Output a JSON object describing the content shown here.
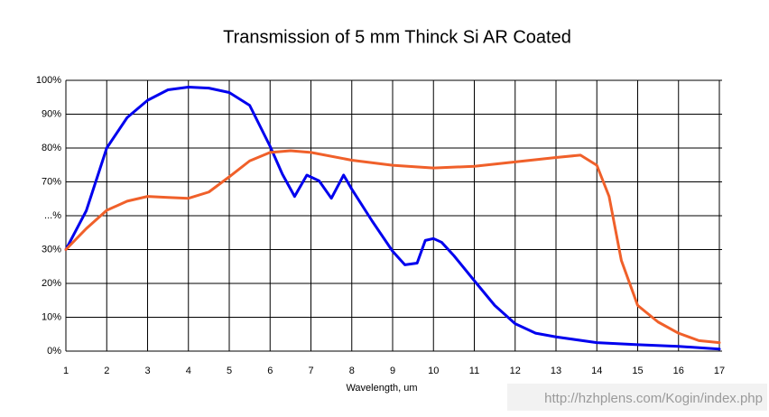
{
  "chart_data": {
    "type": "line",
    "title": "Transmission of 5 mm Thinck Si AR Coated",
    "x_label": "Wavelength, um",
    "watermark": "http://hzhplens.com/Kogin/index.php",
    "xlim": [
      1,
      17
    ],
    "xticks": [
      1,
      2,
      3,
      4,
      5,
      6,
      7,
      8,
      9,
      10,
      11,
      12,
      13,
      14,
      15,
      16,
      17
    ],
    "ylim": [
      0,
      100
    ],
    "yticks": [
      {
        "value": 0,
        "label": "0%"
      },
      {
        "value": 10,
        "label": "10%"
      },
      {
        "value": 20,
        "label": "20%"
      },
      {
        "value": 30,
        "label": "30%"
      },
      {
        "value": 50,
        "label": "...%"
      },
      {
        "value": 70,
        "label": "70%"
      },
      {
        "value": 80,
        "label": "80%"
      },
      {
        "value": 90,
        "label": "90%"
      },
      {
        "value": 100,
        "label": "100%"
      }
    ],
    "grid": true,
    "series": [
      {
        "name": "Blue",
        "color": "#0000ee",
        "x": [
          1,
          1.5,
          2,
          2.5,
          3,
          3.5,
          4,
          4.5,
          5,
          5.5,
          6,
          6.3,
          6.6,
          6.9,
          7.2,
          7.5,
          7.8,
          8,
          8.5,
          9,
          9.3,
          9.6,
          9.8,
          10,
          10.2,
          10.5,
          11,
          11.5,
          12,
          12.5,
          13,
          14,
          15,
          16,
          17
        ],
        "values": [
          30,
          53,
          80,
          89,
          94.1,
          97.2,
          98,
          97.7,
          96.4,
          92.6,
          80.5,
          72.3,
          61.4,
          72,
          70.3,
          60.3,
          72,
          65.7,
          46.8,
          29.5,
          25.5,
          26,
          35.4,
          36.5,
          34.3,
          28.2,
          20.8,
          13.5,
          8.1,
          5.3,
          4.2,
          2.5,
          1.9,
          1.4,
          0.6
        ]
      },
      {
        "name": "Orange",
        "color": "#f0602a",
        "x": [
          1,
          1.5,
          2,
          2.5,
          3,
          3.5,
          4,
          4.5,
          5,
          5.5,
          6,
          6.5,
          7,
          8,
          9,
          10,
          11,
          12,
          13,
          13.6,
          14,
          14.3,
          14.6,
          15,
          15.5,
          16,
          16.5,
          17
        ],
        "values": [
          30,
          42.4,
          53.2,
          58.6,
          61.4,
          60.8,
          60.3,
          64,
          71.5,
          76.2,
          78.7,
          79.2,
          78.7,
          76.4,
          74.9,
          74.1,
          74.6,
          75.9,
          77.2,
          77.9,
          74.9,
          61.4,
          26.8,
          13.5,
          8.6,
          5.3,
          3.1,
          2.5
        ]
      }
    ]
  }
}
